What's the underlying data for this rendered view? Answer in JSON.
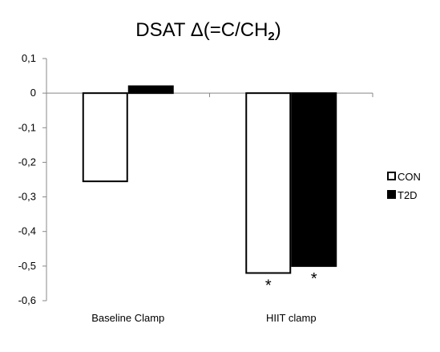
{
  "chart_data": {
    "type": "bar",
    "title": {
      "prefix": "DSAT Δ(=C/CH",
      "subscript": "2",
      "suffix": ")"
    },
    "categories": [
      "Baseline Clamp",
      "HIIT clamp"
    ],
    "series": [
      {
        "name": "CON",
        "values": [
          -0.255,
          -0.52
        ],
        "color": "#ffffff",
        "stroke": "#000000"
      },
      {
        "name": "T2D",
        "values": [
          0.02,
          -0.5
        ],
        "color": "#000000",
        "stroke": "#000000"
      }
    ],
    "annotations": [
      {
        "category": "HIIT clamp",
        "series": "CON",
        "text": "*"
      },
      {
        "category": "HIIT clamp",
        "series": "T2D",
        "text": "*"
      }
    ],
    "y_ticks": [
      "0,1",
      "0",
      "-0,1",
      "-0,2",
      "-0,3",
      "-0,4",
      "-0,5",
      "-0,6"
    ],
    "ylim": [
      -0.6,
      0.1
    ],
    "grid": false,
    "legend_position": "right"
  }
}
